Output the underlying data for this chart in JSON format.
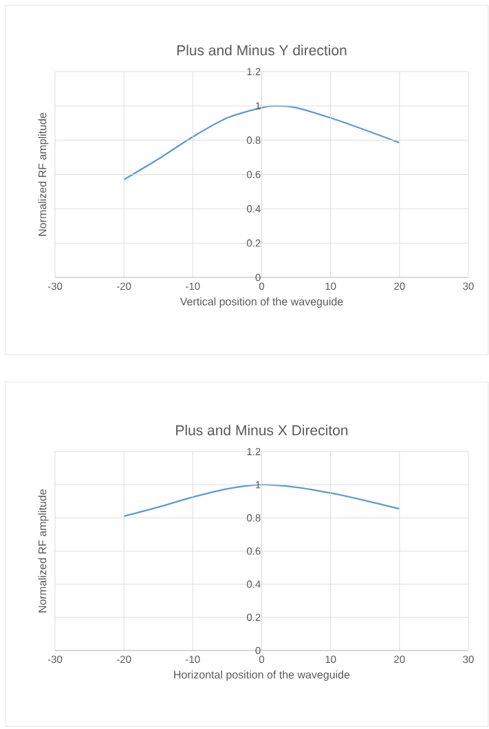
{
  "chart_data": [
    {
      "type": "line",
      "title": "Plus and Minus Y direction",
      "xlabel": "Vertical position of the waveguide",
      "ylabel": "Normalized RF amplitude",
      "x": [
        -20,
        -15,
        -10,
        -5,
        0,
        2,
        5,
        10,
        15,
        20
      ],
      "series": [
        {
          "color": "#5b9bd5",
          "values": [
            0.57,
            0.69,
            0.82,
            0.93,
            0.99,
            1.0,
            0.99,
            0.93,
            0.86,
            0.785
          ]
        }
      ],
      "xlim": [
        -30,
        30
      ],
      "ylim": [
        0,
        1.2
      ],
      "xticks": [
        -30,
        -20,
        -10,
        0,
        10,
        20,
        30
      ],
      "yticks": [
        0,
        0.2,
        0.4,
        0.6,
        0.8,
        1,
        1.2
      ],
      "grid": true
    },
    {
      "type": "line",
      "title": "Plus and Minus X Direciton",
      "xlabel": "Horizontal position of the waveguide",
      "ylabel": "Normalized RF amplitude",
      "x": [
        -20,
        -15,
        -10,
        -5,
        0,
        5,
        10,
        15,
        20
      ],
      "series": [
        {
          "color": "#5b9bd5",
          "values": [
            0.81,
            0.865,
            0.925,
            0.975,
            1.0,
            0.985,
            0.95,
            0.905,
            0.855
          ]
        }
      ],
      "xlim": [
        -30,
        30
      ],
      "ylim": [
        0,
        1.2
      ],
      "xticks": [
        -30,
        -20,
        -10,
        0,
        10,
        20,
        30
      ],
      "yticks": [
        0,
        0.2,
        0.4,
        0.6,
        0.8,
        1,
        1.2
      ],
      "grid": true
    }
  ]
}
